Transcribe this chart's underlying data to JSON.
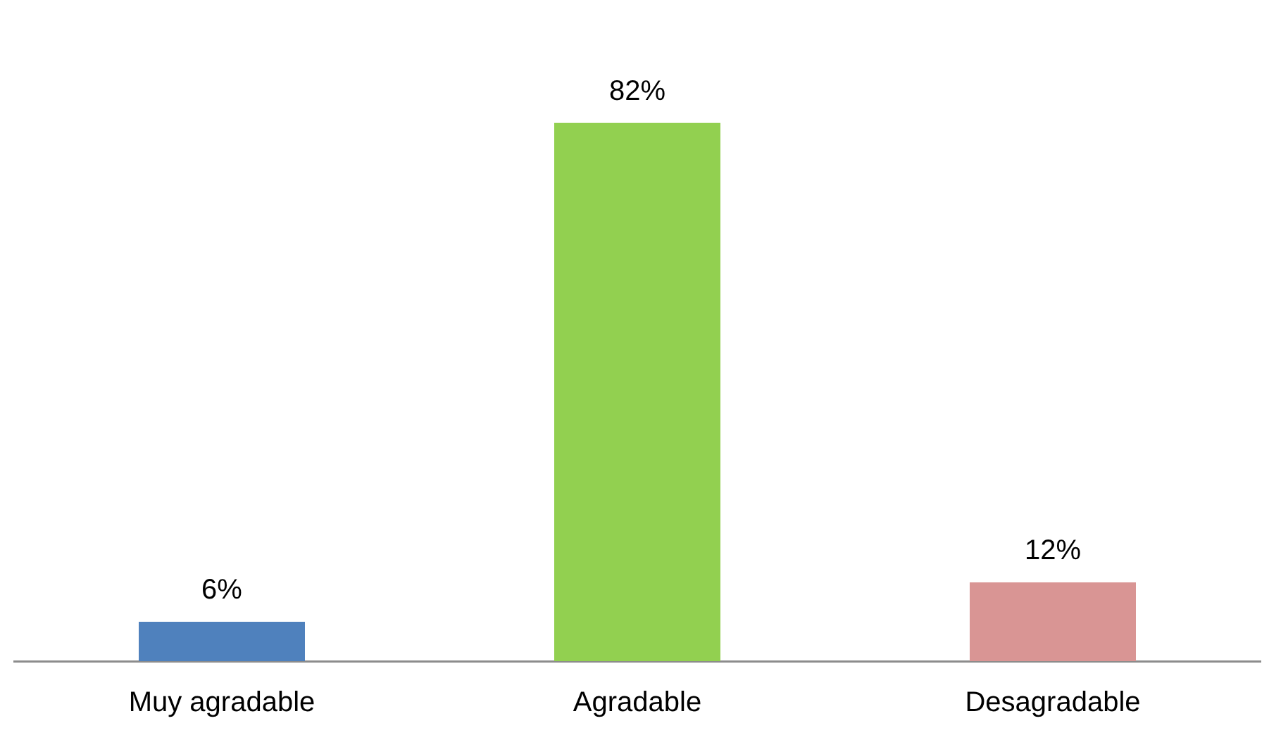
{
  "chart_data": {
    "type": "bar",
    "categories": [
      "Muy agradable",
      "Agradable",
      "Desagradable"
    ],
    "values": [
      6,
      82,
      12
    ],
    "colors": [
      "#4f81bd",
      "#92d050",
      "#d99594"
    ],
    "value_labels": [
      "6%",
      "82%",
      "12%"
    ],
    "tick_labels": "x",
    "grid": false,
    "legend": false
  }
}
